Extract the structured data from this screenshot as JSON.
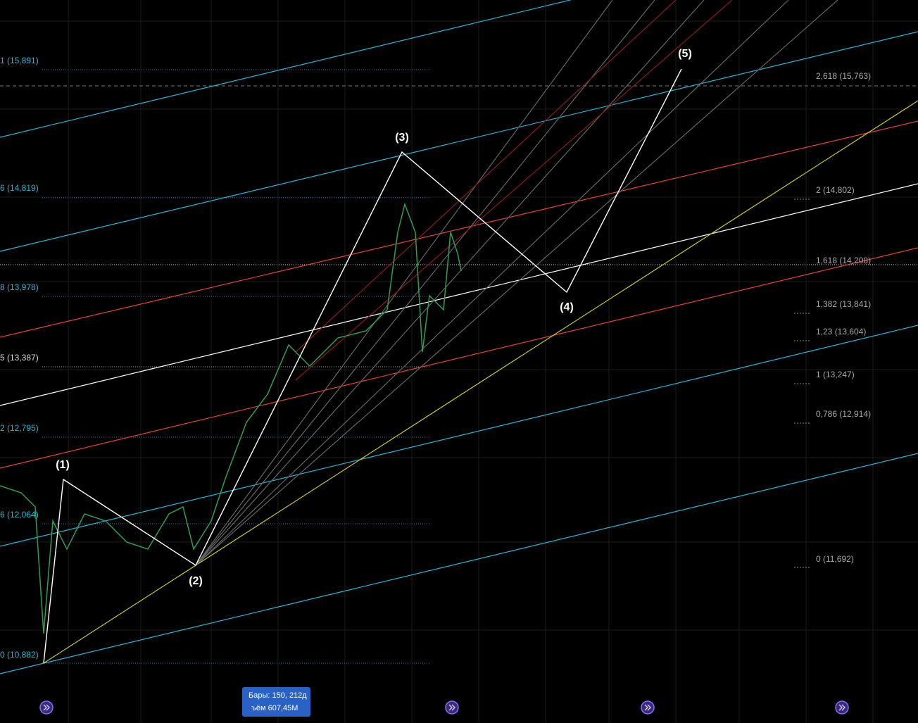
{
  "left_levels": [
    "1 (15,891)",
    "6 (14,819)",
    "8 (13,978)",
    "5 (13,387)",
    "2 (12,795)",
    "6 (12,064)",
    "0 (10,882)"
  ],
  "right_levels": [
    "2,618 (15,763)",
    "2 (14,802)",
    "1,618 (14,208)",
    "1,382 (13,841)",
    "1,23 (13,604)",
    "1 (13,247)",
    "0,786 (12,914)",
    "0 (11,692)"
  ],
  "waves": [
    "(1)",
    "(2)",
    "(3)",
    "(4)",
    "(5)"
  ],
  "tooltip": {
    "bars": "Бары: 150, 212д",
    "volume": "ъём 607,45M"
  }
}
